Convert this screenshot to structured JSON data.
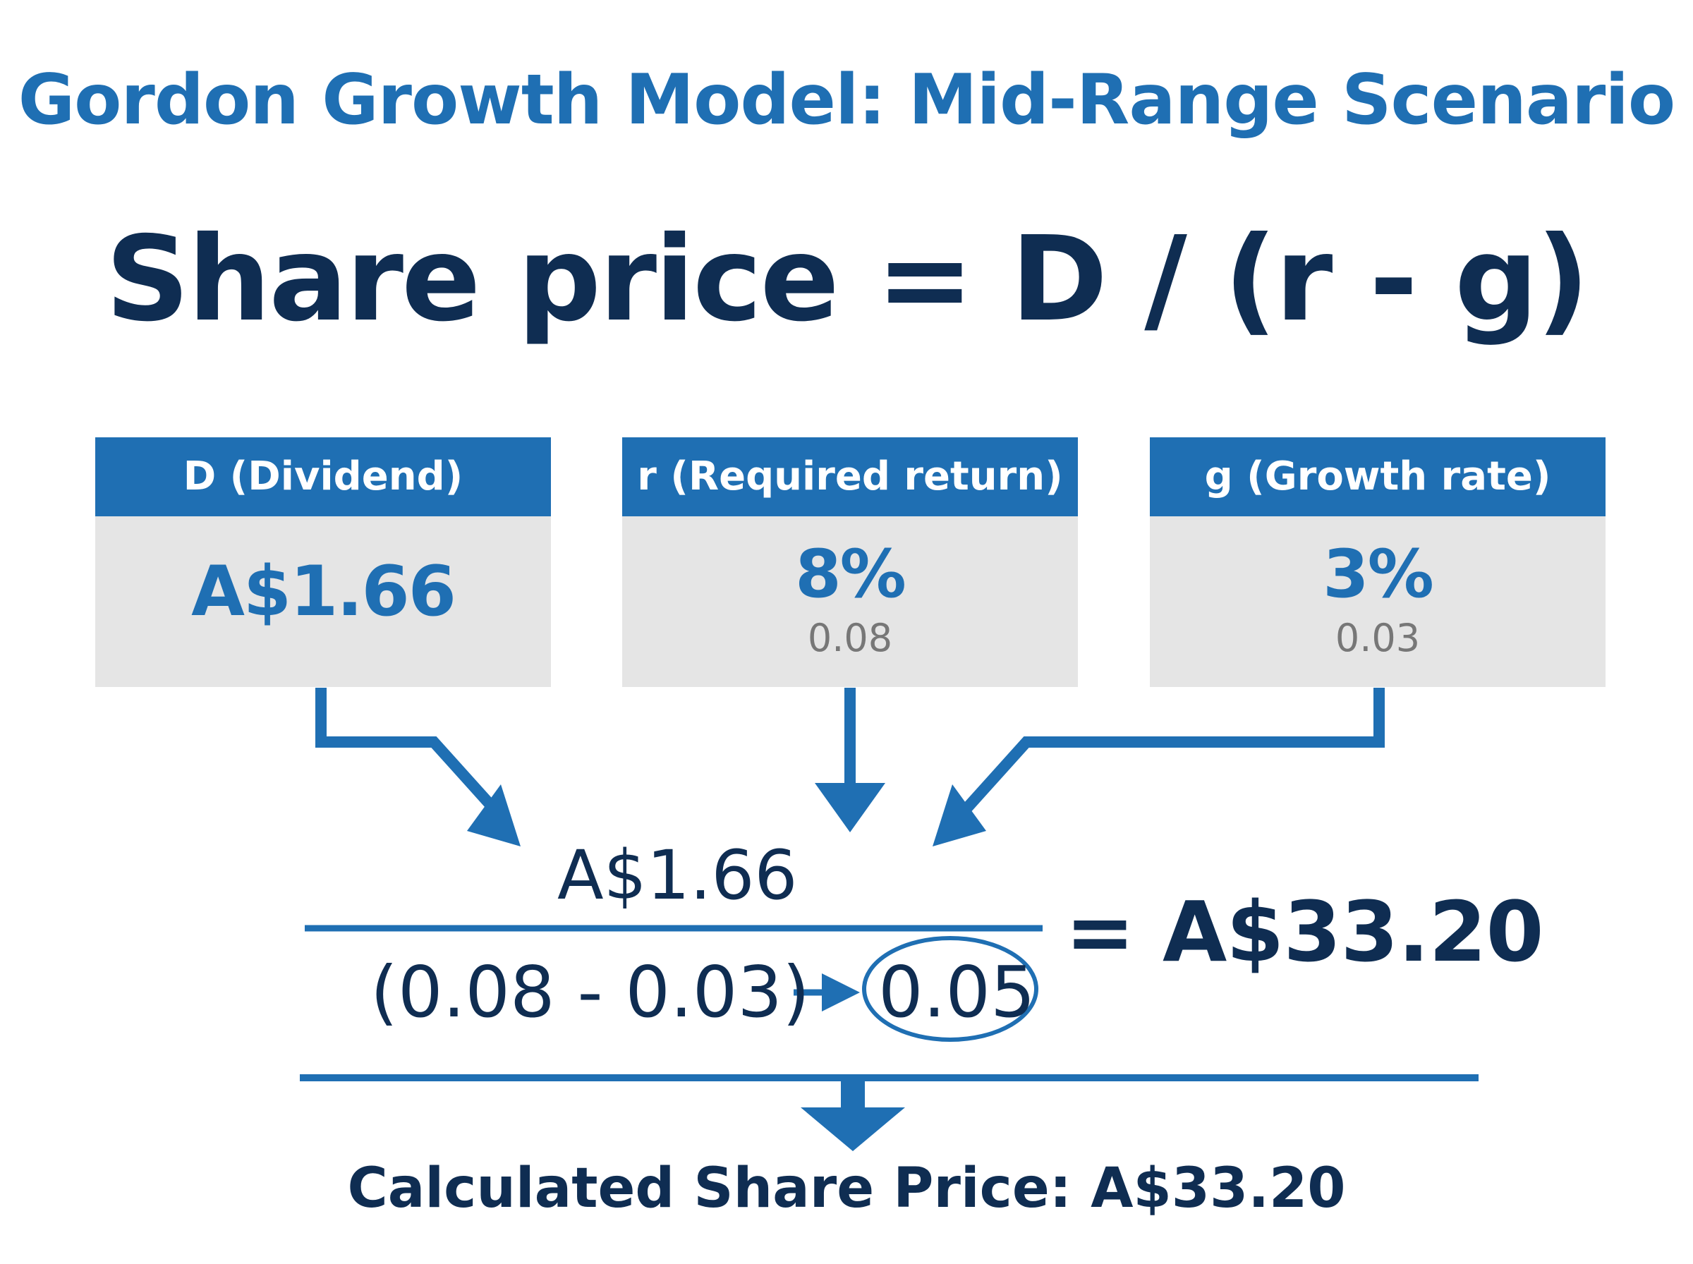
{
  "title": "Gordon Growth Model: Mid-Range Scenario",
  "formula": "Share price = D / (r - g)",
  "inputs": [
    {
      "label": "D (Dividend)",
      "value": "A$1.66",
      "decimal": ""
    },
    {
      "label": "r (Required return)",
      "value": "8%",
      "decimal": "0.08"
    },
    {
      "label": "g (Growth rate)",
      "value": "3%",
      "decimal": "0.03"
    }
  ],
  "calculation": {
    "numerator": "A$1.66",
    "denominator": "(0.08 - 0.03)",
    "denominator_result": "0.05",
    "result": "= A$33.20"
  },
  "conclusion": "Calculated Share Price: A$33.20",
  "colors": {
    "accent": "#1f6fb3",
    "dark": "#0f2d52",
    "card_bg": "#e5e5e5",
    "muted": "#777777"
  }
}
